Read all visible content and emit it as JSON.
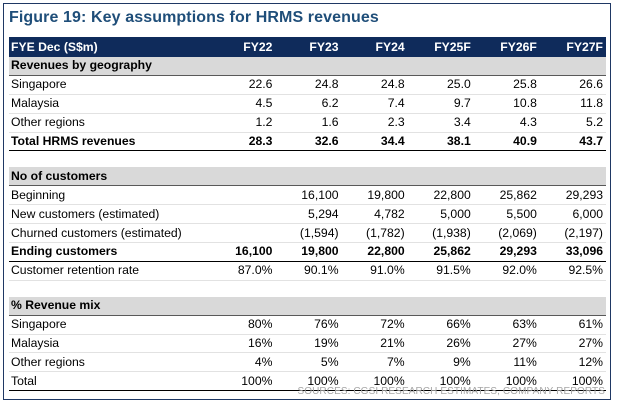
{
  "title": "Figure 19: Key assumptions for HRMS revenues",
  "header": [
    "FYE Dec (S$m)",
    "FY22",
    "FY23",
    "FY24",
    "FY25F",
    "FY26F",
    "FY27F"
  ],
  "rows": [
    {
      "type": "sec",
      "cells": [
        "Revenues by geography",
        "",
        "",
        "",
        "",
        "",
        ""
      ]
    },
    {
      "type": "row",
      "cells": [
        "Singapore",
        "22.6",
        "24.8",
        "24.8",
        "25.0",
        "25.8",
        "26.6"
      ]
    },
    {
      "type": "row",
      "cells": [
        "Malaysia",
        "4.5",
        "6.2",
        "7.4",
        "9.7",
        "10.8",
        "11.8"
      ]
    },
    {
      "type": "row",
      "cells": [
        "Other regions",
        "1.2",
        "1.6",
        "2.3",
        "3.4",
        "4.3",
        "5.2"
      ]
    },
    {
      "type": "total",
      "cells": [
        "Total HRMS revenues",
        "28.3",
        "32.6",
        "34.4",
        "38.1",
        "40.9",
        "43.7"
      ]
    },
    {
      "type": "spacer",
      "cells": [
        "",
        "",
        "",
        "",
        "",
        "",
        ""
      ]
    },
    {
      "type": "sec",
      "cells": [
        "No of customers",
        "",
        "",
        "",
        "",
        "",
        ""
      ]
    },
    {
      "type": "row",
      "cells": [
        "Beginning",
        "",
        "16,100",
        "19,800",
        "22,800",
        "25,862",
        "29,293"
      ]
    },
    {
      "type": "row",
      "cells": [
        "New customers (estimated)",
        "",
        "5,294",
        "4,782",
        "5,000",
        "5,500",
        "6,000"
      ]
    },
    {
      "type": "row",
      "cells": [
        "Churned customers (estimated)",
        "",
        "(1,594)",
        "(1,782)",
        "(1,938)",
        "(2,069)",
        "(2,197)"
      ]
    },
    {
      "type": "total",
      "cells": [
        "Ending customers",
        "16,100",
        "19,800",
        "22,800",
        "25,862",
        "29,293",
        "33,096"
      ]
    },
    {
      "type": "row",
      "cells": [
        "Customer retention rate",
        "87.0%",
        "90.1%",
        "91.0%",
        "91.5%",
        "92.0%",
        "92.5%"
      ]
    },
    {
      "type": "spacer",
      "cells": [
        "",
        "",
        "",
        "",
        "",
        "",
        ""
      ]
    },
    {
      "type": "sec",
      "cells": [
        "% Revenue mix",
        "",
        "",
        "",
        "",
        "",
        ""
      ]
    },
    {
      "type": "row",
      "cells": [
        "Singapore",
        "80%",
        "76%",
        "72%",
        "66%",
        "63%",
        "61%"
      ]
    },
    {
      "type": "row",
      "cells": [
        "Malaysia",
        "16%",
        "19%",
        "21%",
        "26%",
        "27%",
        "27%"
      ]
    },
    {
      "type": "row",
      "cells": [
        "Other regions",
        "4%",
        "5%",
        "7%",
        "9%",
        "11%",
        "12%"
      ]
    },
    {
      "type": "plain",
      "cells": [
        "Total",
        "100%",
        "100%",
        "100%",
        "100%",
        "100%",
        "100%"
      ]
    }
  ],
  "source": "SOURCES: CGSI RESEARCH ESTIMATES, COMPANY REPORTS",
  "colors": {
    "title": "#1f4e79",
    "header_bg": "#0f2b5b",
    "section_bg": "#d9d9d9",
    "source_text": "#a6a6a6"
  }
}
